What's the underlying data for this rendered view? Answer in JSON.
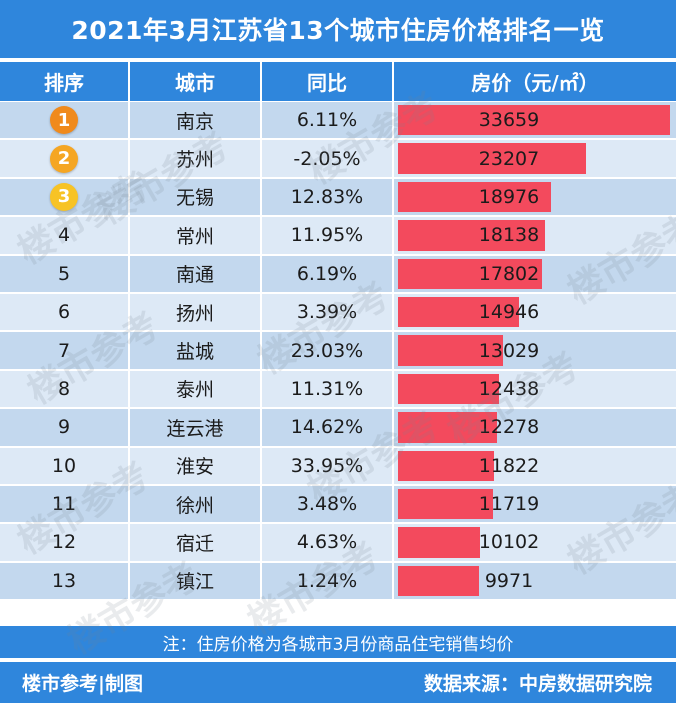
{
  "title": "2021年3月江苏省13个城市住房价格排名一览",
  "headers": {
    "rank": "排序",
    "city": "城市",
    "yoy": "同比",
    "price": "房价（元/㎡）"
  },
  "max_price": 33659,
  "rows": [
    {
      "rank": "1",
      "city": "南京",
      "yoy": "6.11%",
      "price": 33659
    },
    {
      "rank": "2",
      "city": "苏州",
      "yoy": "-2.05%",
      "price": 23207
    },
    {
      "rank": "3",
      "city": "无锡",
      "yoy": "12.83%",
      "price": 18976
    },
    {
      "rank": "4",
      "city": "常州",
      "yoy": "11.95%",
      "price": 18138
    },
    {
      "rank": "5",
      "city": "南通",
      "yoy": "6.19%",
      "price": 17802
    },
    {
      "rank": "6",
      "city": "扬州",
      "yoy": "3.39%",
      "price": 14946
    },
    {
      "rank": "7",
      "city": "盐城",
      "yoy": "23.03%",
      "price": 13029
    },
    {
      "rank": "8",
      "city": "泰州",
      "yoy": "11.31%",
      "price": 12438
    },
    {
      "rank": "9",
      "city": "连云港",
      "yoy": "14.62%",
      "price": 12278
    },
    {
      "rank": "10",
      "city": "淮安",
      "yoy": "33.95%",
      "price": 11822
    },
    {
      "rank": "11",
      "city": "徐州",
      "yoy": "3.48%",
      "price": 11719
    },
    {
      "rank": "12",
      "city": "宿迁",
      "yoy": "4.63%",
      "price": 10102
    },
    {
      "rank": "13",
      "city": "镇江",
      "yoy": "1.24%",
      "price": 9971
    }
  ],
  "medal_colors": [
    "#f08a1c",
    "#f5a623",
    "#f7c325"
  ],
  "note": "注：住房价格为各城市3月份商品住宅销售均价",
  "footer": {
    "left": "楼市参考|制图",
    "right": "数据来源：中房数据研究院"
  },
  "watermark": "楼市参考",
  "colors": {
    "header": "#2f86dc",
    "bar": "#f34a5d",
    "row_light": "#dde9f6",
    "row_dark": "#c3d8ee"
  }
}
